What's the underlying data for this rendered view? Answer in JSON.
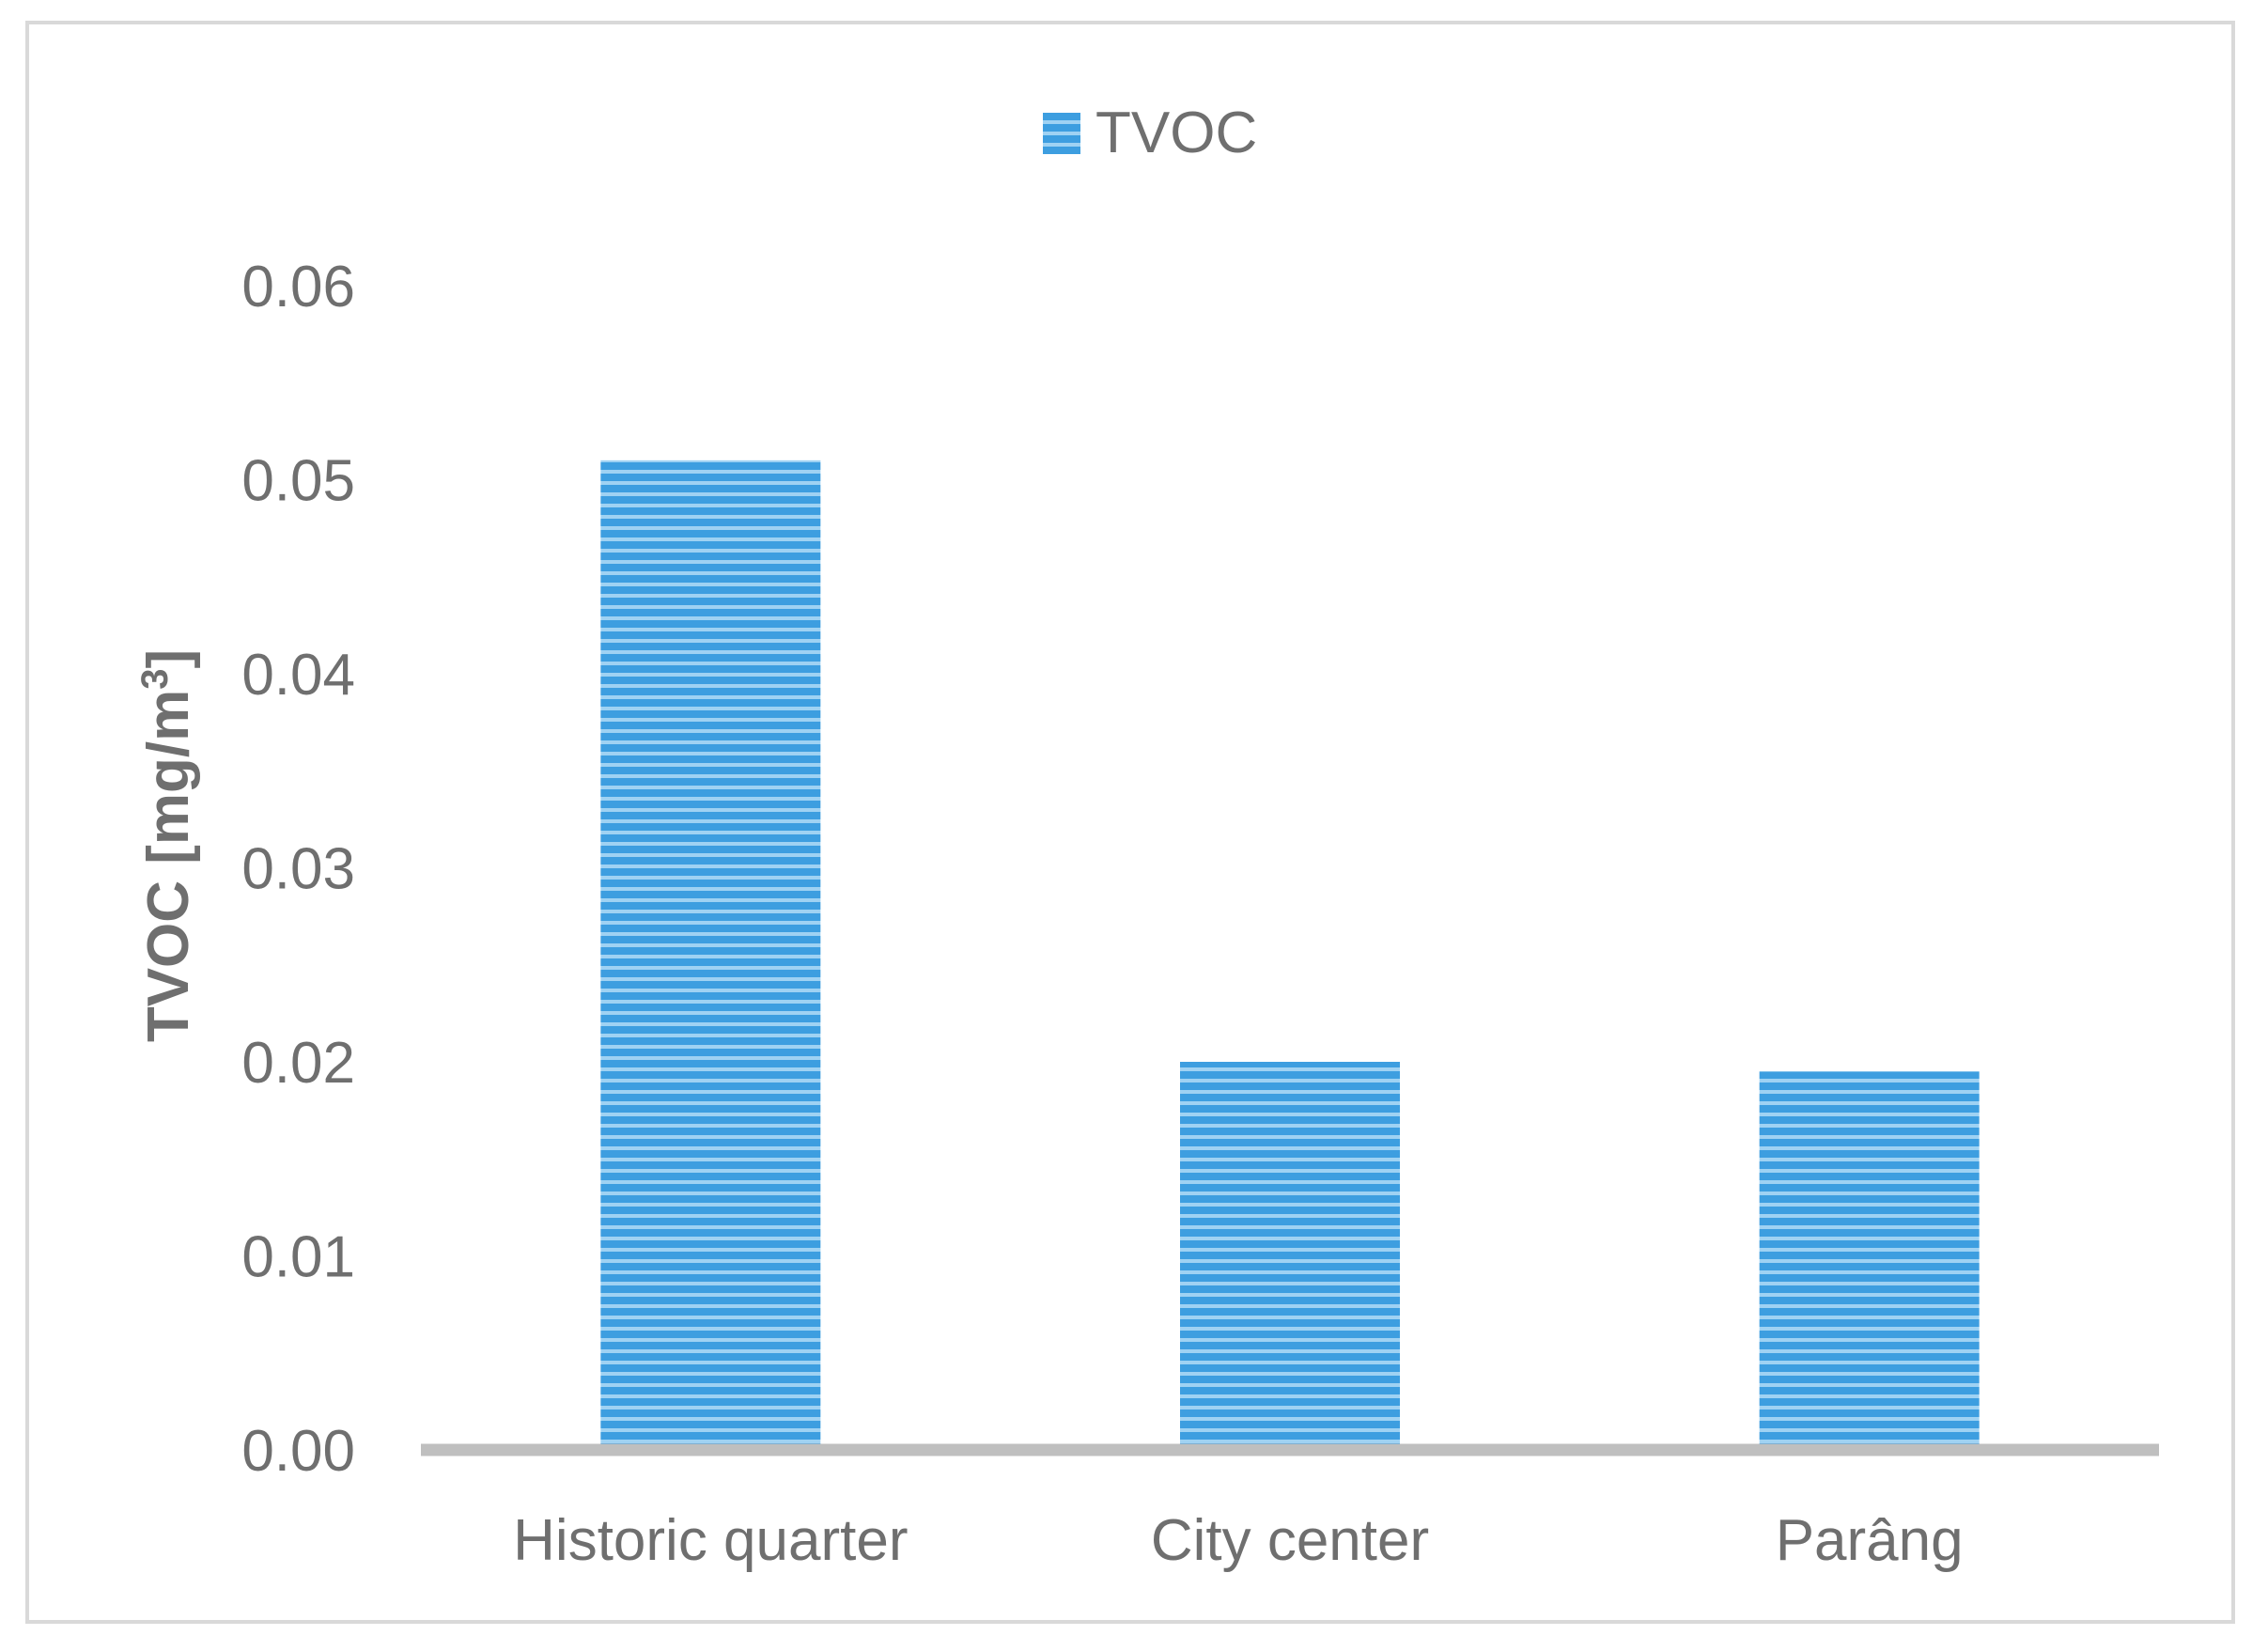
{
  "colors": {
    "bar": "#3d9ee0",
    "bar_stripe": "#9fd2f3",
    "axis": "#bfbfbf",
    "text": "#6f6f6f"
  },
  "legend": {
    "label": "TVOC"
  },
  "chart_data": {
    "type": "bar",
    "categories": [
      "Historic quarter",
      "City center",
      "Parâng"
    ],
    "series": [
      {
        "name": "TVOC",
        "values": [
          0.051,
          0.02,
          0.0195
        ]
      }
    ],
    "ylabel": "TVOC [mg/m3]",
    "ylabel_parts": {
      "main": "TVOC [mg/m",
      "sup": "3",
      "close": "]"
    },
    "ylim": [
      0,
      0.06
    ],
    "yticks": [
      "0.00",
      "0.01",
      "0.02",
      "0.03",
      "0.04",
      "0.05",
      "0.06"
    ],
    "grid": false,
    "legend_position": "top"
  }
}
